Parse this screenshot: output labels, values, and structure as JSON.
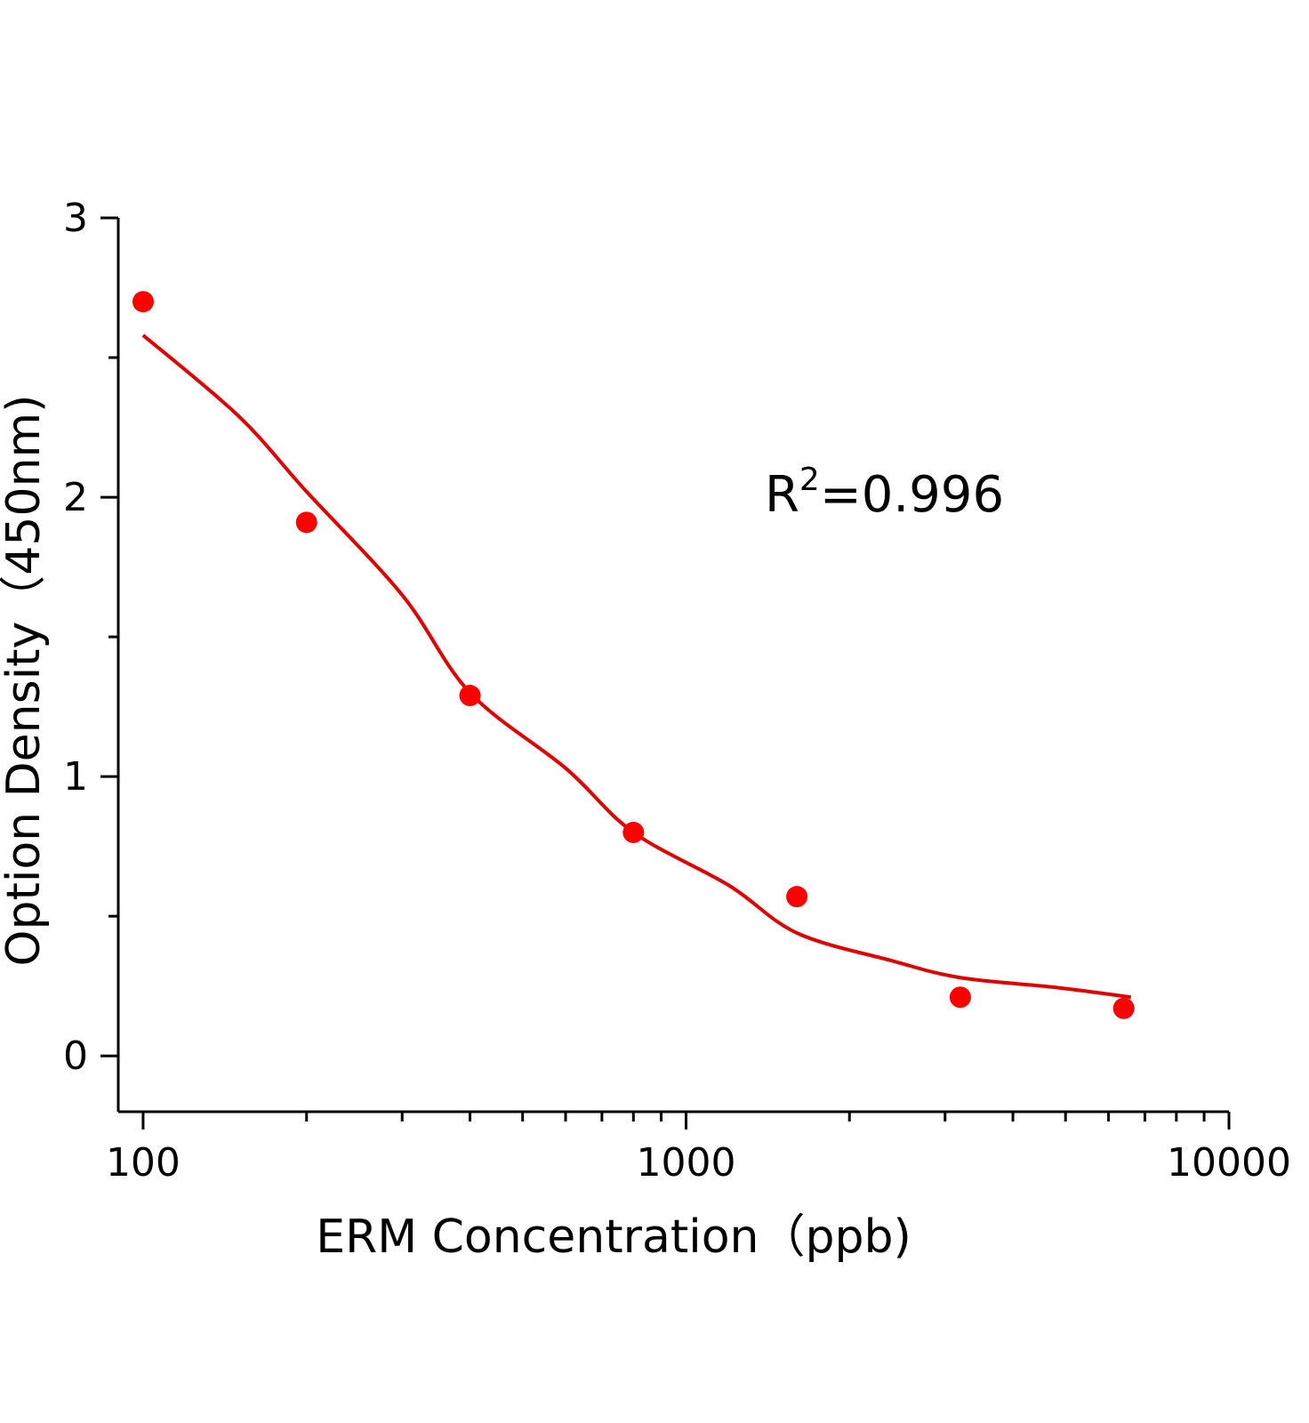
{
  "chart_data": {
    "type": "scatter",
    "title": "",
    "xlabel": "ERM Concentration（ppb)",
    "ylabel": "Option Density（450nm)",
    "x_scale": "log",
    "xlim": [
      90,
      10000
    ],
    "ylim": [
      -0.2,
      3
    ],
    "x_ticks": [
      100,
      1000,
      10000
    ],
    "x_tick_labels": [
      "100",
      "1000",
      "10000"
    ],
    "y_ticks": [
      0,
      1,
      2,
      3
    ],
    "y_tick_labels": [
      "0",
      "1",
      "2",
      "3"
    ],
    "grid": false,
    "marker_color": "#ff0000",
    "curve_color": "#e00000",
    "points": {
      "x": [
        100,
        200,
        400,
        800,
        1600,
        3200,
        6400
      ],
      "y": [
        2.7,
        1.91,
        1.29,
        0.8,
        0.57,
        0.21,
        0.17
      ]
    },
    "fit_curve": {
      "x": [
        100,
        150,
        200,
        300,
        400,
        600,
        800,
        1200,
        1600,
        2400,
        3200,
        4800,
        6600
      ],
      "y": [
        2.58,
        2.29,
        2.02,
        1.65,
        1.3,
        1.03,
        0.8,
        0.61,
        0.44,
        0.34,
        0.28,
        0.245,
        0.21
      ]
    },
    "annotation": {
      "base": "R",
      "sup": "2",
      "rest": "=0.996"
    }
  }
}
